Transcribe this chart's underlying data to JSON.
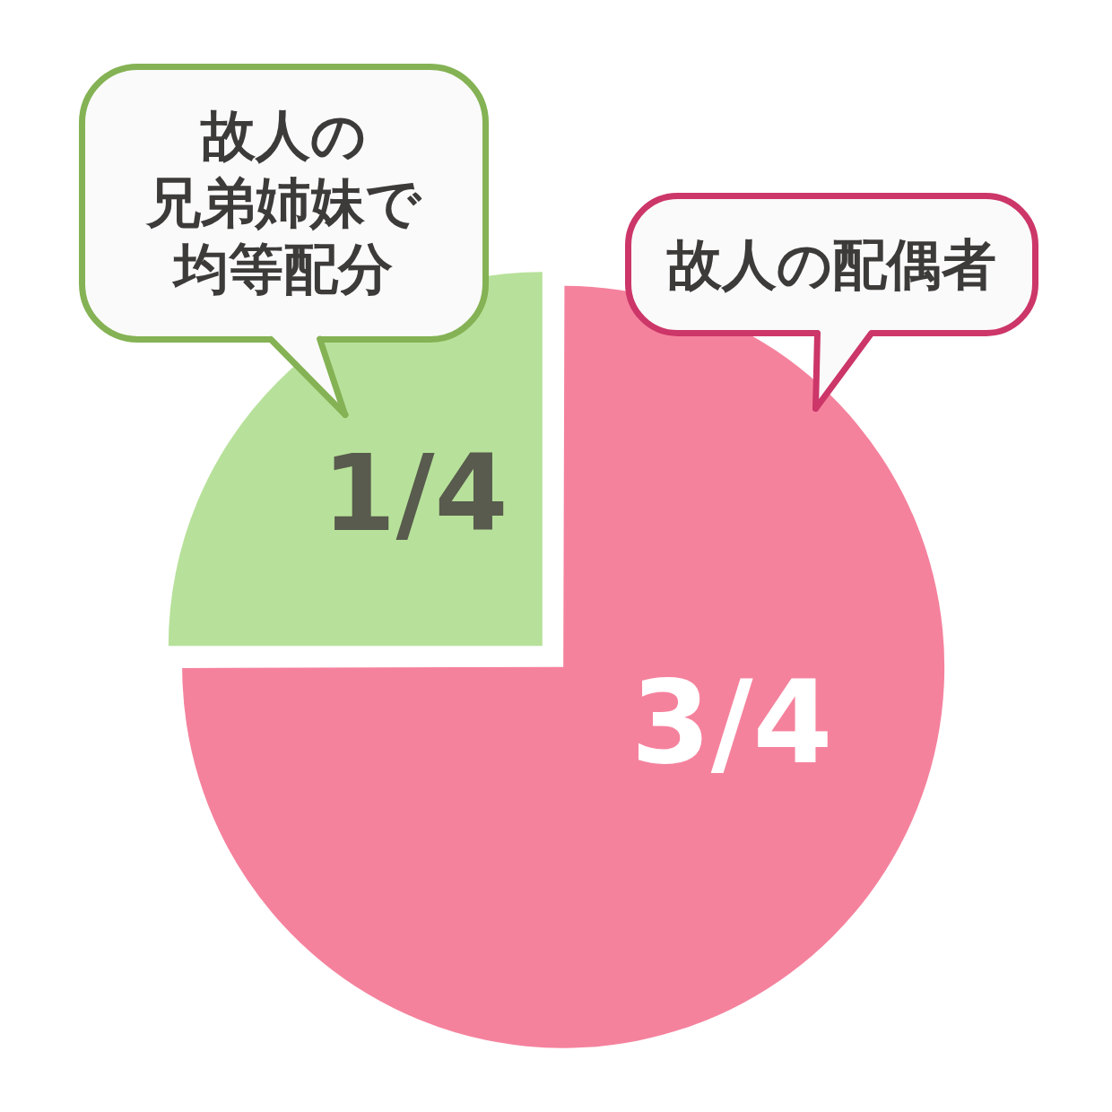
{
  "chart_data": {
    "type": "pie",
    "categories": [
      "故人の配偶者",
      "故人の兄弟姉妹で均等配分"
    ],
    "values": [
      0.75,
      0.25
    ],
    "colors": [
      "#f5829d",
      "#b7e19a"
    ],
    "value_labels": [
      "3/4",
      "1/4"
    ]
  }
}
